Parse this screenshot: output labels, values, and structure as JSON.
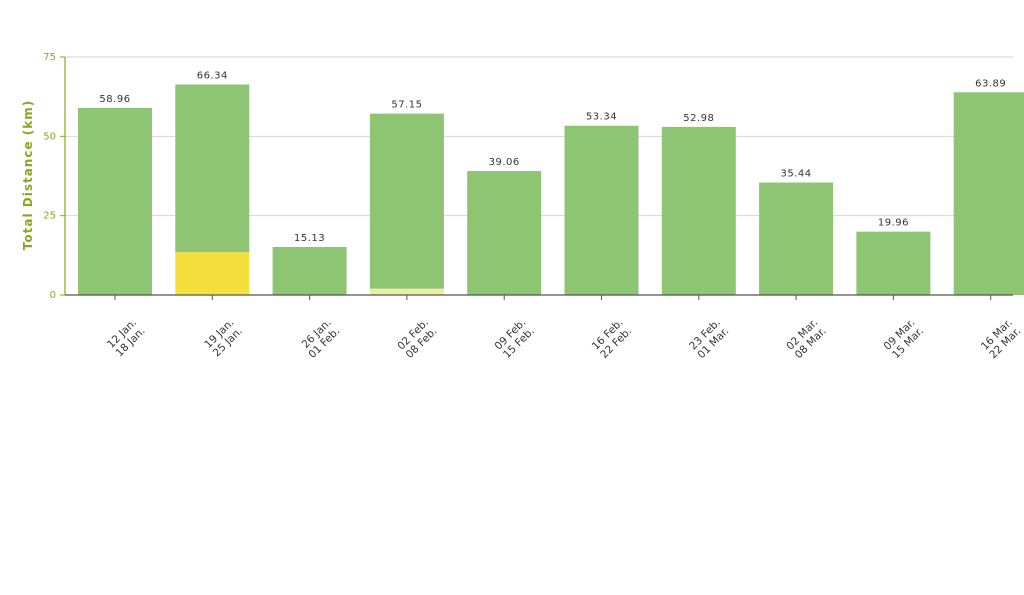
{
  "chart_data": {
    "type": "bar",
    "title": "",
    "xlabel": "",
    "ylabel": "Total Distance (km)",
    "ylim": [
      0,
      75
    ],
    "yticks": [
      0,
      25,
      50,
      75
    ],
    "grid": true,
    "stacked": true,
    "categories": [
      [
        "12 Jan.",
        "18 Jan."
      ],
      [
        "19 Jan.",
        "25 Jan."
      ],
      [
        "26 Jan.",
        "01 Feb."
      ],
      [
        "02 Feb.",
        "08 Feb."
      ],
      [
        "09 Feb.",
        "15 Feb."
      ],
      [
        "16 Feb.",
        "22 Feb."
      ],
      [
        "23 Feb.",
        "01 Mar."
      ],
      [
        "02 Mar.",
        "08 Mar."
      ],
      [
        "09 Mar.",
        "15 Mar."
      ],
      [
        "16 Mar.",
        "22 Mar."
      ]
    ],
    "series": [
      {
        "values": [
          0,
          13.5,
          0,
          0,
          0,
          0,
          0,
          0,
          0,
          0
        ],
        "color": "#f5df3c"
      },
      {
        "values": [
          0,
          0,
          0,
          2.0,
          0,
          0,
          0,
          0,
          0,
          0
        ],
        "color": "#e9ef9e"
      },
      {
        "values": [
          58.96,
          52.84,
          15.13,
          55.15,
          39.06,
          53.34,
          52.98,
          35.44,
          19.96,
          63.89
        ],
        "color": "#8ec573"
      }
    ],
    "totals": [
      "58.96",
      "66.34",
      "15.13",
      "57.15",
      "39.06",
      "53.34",
      "52.98",
      "35.44",
      "19.96",
      "63.89"
    ],
    "colors": {
      "axis": "#8aa61c",
      "grid": "#d6d6d6",
      "baseline": "#555555"
    }
  }
}
